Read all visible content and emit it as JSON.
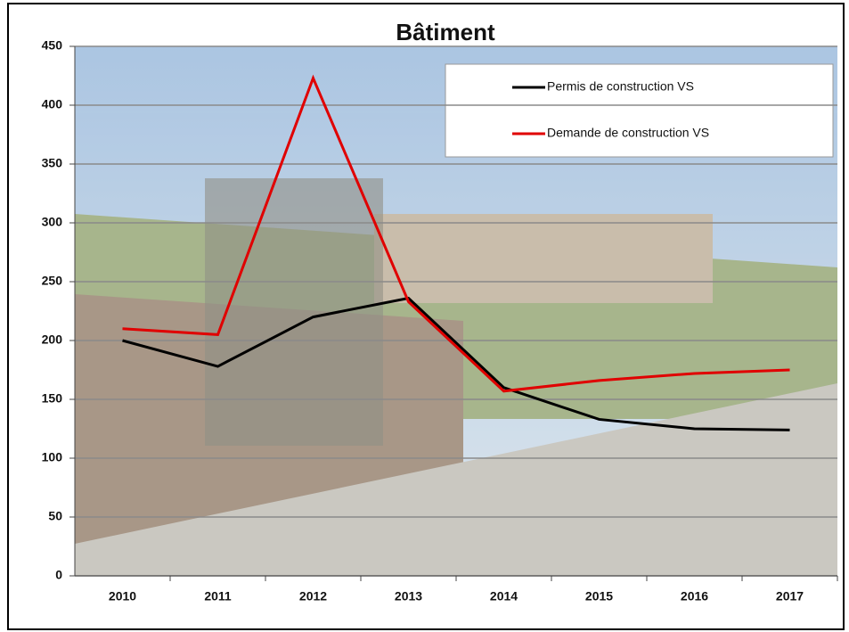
{
  "chart_data": {
    "type": "line",
    "title": "Bâtiment",
    "categories": [
      "2010",
      "2011",
      "2012",
      "2013",
      "2014",
      "2015",
      "2016",
      "2017"
    ],
    "series": [
      {
        "name": "Permis de construction VS",
        "color": "#000000",
        "values": [
          200,
          178,
          220,
          236,
          160,
          133,
          125,
          124
        ]
      },
      {
        "name": "Demande de construction VS",
        "color": "#e00000",
        "values": [
          210,
          205,
          423,
          233,
          157,
          166,
          172,
          175
        ]
      }
    ],
    "ylim": [
      0,
      450
    ],
    "yticks": [
      0,
      50,
      100,
      150,
      200,
      250,
      300,
      350,
      400,
      450
    ],
    "grid": true,
    "legend": "upper right"
  }
}
